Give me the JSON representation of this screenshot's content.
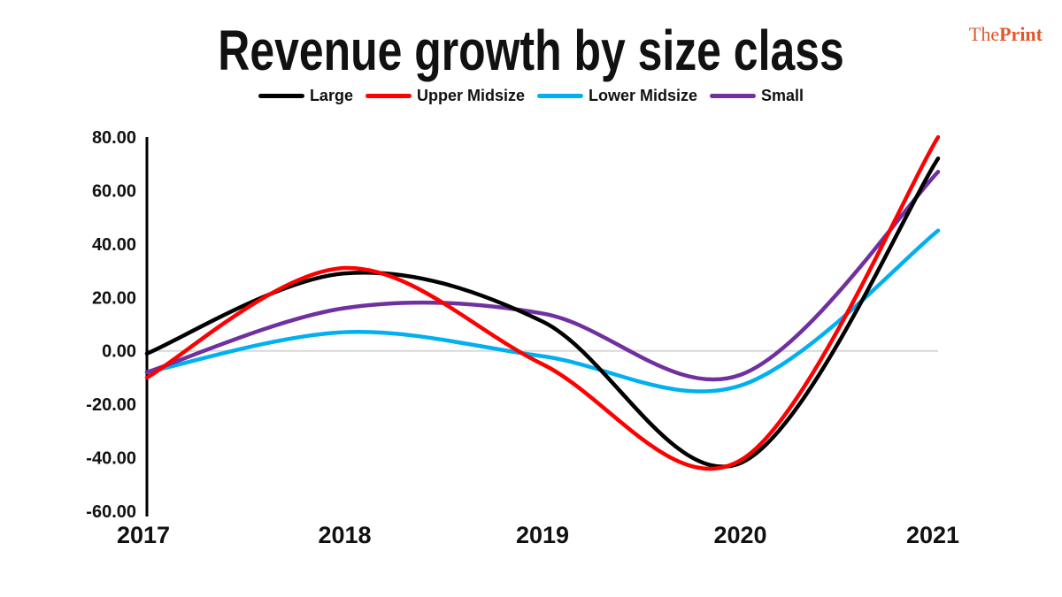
{
  "brand": {
    "prefix": "The",
    "name": "Print",
    "color": "#e2572b"
  },
  "chart_data": {
    "type": "line",
    "title": "Revenue growth by size class",
    "xlabel": "",
    "ylabel": "",
    "categories": [
      "2017",
      "2018",
      "2019",
      "2020",
      "2021"
    ],
    "ylim": [
      -60,
      80
    ],
    "yticks": [
      80,
      60,
      40,
      20,
      0,
      -20,
      -40,
      -60
    ],
    "ytick_labels": [
      "80.00",
      "60.00",
      "40.00",
      "20.00",
      "0.00",
      "-20.00",
      "-40.00",
      "-60.00"
    ],
    "legend_position": "top",
    "grid": false,
    "series": [
      {
        "name": "Large",
        "color": "#000000",
        "values": [
          -1,
          29,
          11,
          -42,
          72
        ]
      },
      {
        "name": "Upper Midsize",
        "color": "#ff0000",
        "values": [
          -10,
          31,
          -5,
          -41,
          80
        ]
      },
      {
        "name": "Lower Midsize",
        "color": "#00b0f0",
        "values": [
          -8,
          7,
          -2,
          -13,
          45
        ]
      },
      {
        "name": "Small",
        "color": "#7030a0",
        "values": [
          -8,
          16,
          14,
          -9,
          67
        ]
      }
    ]
  }
}
